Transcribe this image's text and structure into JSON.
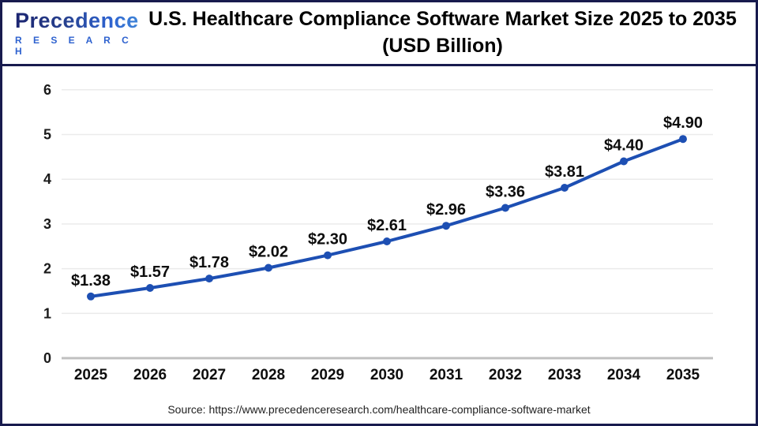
{
  "logo": {
    "name": "Precedence",
    "subtitle": "R E S E A R C H"
  },
  "header": {
    "title_line1": "U.S. Healthcare Compliance Software Market Size 2025 to 2035",
    "title_line2": "(USD Billion)"
  },
  "footer": {
    "source": "Source: https://www.precedenceresearch.com/healthcare-compliance-software-market"
  },
  "colors": {
    "line": "#1d4fb3",
    "marker": "#1d4fb3",
    "grid": "#ebebeb",
    "axis": "#c0c0c0",
    "navy_border": "#181b4e",
    "tick_text": "#1a1a1a",
    "label_text": "#0d0d0d"
  },
  "chart_data": {
    "type": "line",
    "title": "U.S. Healthcare Compliance Software Market Size 2025 to 2035 (USD Billion)",
    "categories": [
      "2025",
      "2026",
      "2027",
      "2028",
      "2029",
      "2030",
      "2031",
      "2032",
      "2033",
      "2034",
      "2035"
    ],
    "values": [
      1.38,
      1.57,
      1.78,
      2.02,
      2.3,
      2.61,
      2.96,
      3.36,
      3.81,
      4.4,
      4.9
    ],
    "labels": [
      "$1.38",
      "$1.57",
      "$1.78",
      "$2.02",
      "$2.30",
      "$2.61",
      "$2.96",
      "$3.36",
      "$3.81",
      "$4.40",
      "$4.90"
    ],
    "xlabel": "",
    "ylabel": "",
    "ylim": [
      0,
      6
    ],
    "yticks": [
      0,
      1,
      2,
      3,
      4,
      5,
      6
    ],
    "grid": true,
    "legend": "none",
    "marker": "circle"
  }
}
